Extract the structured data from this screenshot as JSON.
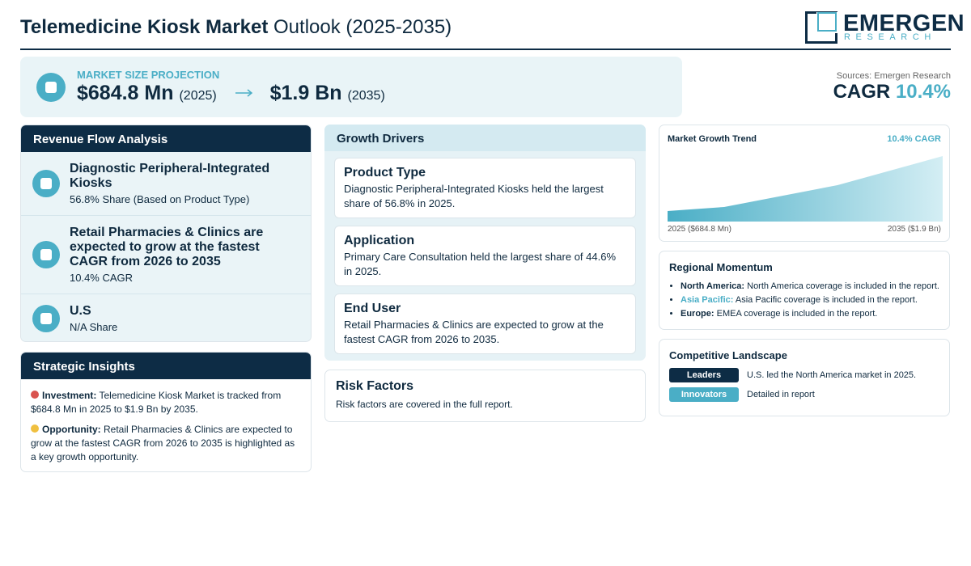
{
  "header": {
    "title_bold": "Telemedicine Kiosk Market",
    "title_rest": "Outlook (2025-2035)",
    "logo_main": "EMERGEN",
    "logo_sub": "RESEARCH"
  },
  "projection": {
    "label": "MARKET SIZE PROJECTION",
    "start_value": "$684.8 Mn",
    "start_year": "(2025)",
    "end_value": "$1.9 Bn",
    "end_year": "(2035)"
  },
  "sources": "Sources: Emergen Research",
  "cagr": {
    "label": "CAGR",
    "value": "10.4%"
  },
  "revenue_flow": {
    "title": "Revenue Flow Analysis",
    "items": [
      {
        "title": "Diagnostic Peripheral-Integrated Kiosks",
        "detail": "56.8% Share (Based on Product Type)"
      },
      {
        "title": "Retail Pharmacies & Clinics are expected to grow at the fastest CAGR from 2026 to 2035",
        "detail": "10.4% CAGR"
      },
      {
        "title": "U.S",
        "detail": "N/A Share"
      }
    ]
  },
  "strategic_insights": {
    "title": "Strategic Insights",
    "items": [
      {
        "label": "Investment:",
        "text": "Telemedicine Kiosk Market is tracked from $684.8 Mn in 2025 to $1.9 Bn by 2035."
      },
      {
        "label": "Opportunity:",
        "text": "Retail Pharmacies & Clinics are expected to grow at the fastest CAGR from 2026 to 2035 is highlighted as a key growth opportunity."
      }
    ]
  },
  "growth_drivers": {
    "title": "Growth Drivers",
    "items": [
      {
        "title": "Product Type",
        "text": "Diagnostic Peripheral-Integrated Kiosks held the largest share of 56.8% in 2025."
      },
      {
        "title": "Application",
        "text": "Primary Care Consultation held the largest share of 44.6% in 2025."
      },
      {
        "title": "End User",
        "text": "Retail Pharmacies & Clinics are expected to grow at the fastest CAGR from 2026 to 2035."
      }
    ]
  },
  "risk_factors": {
    "title": "Risk Factors",
    "text": "Risk factors are covered in the full report."
  },
  "growth_trend": {
    "title": "Market Growth Trend",
    "badge": "10.4% CAGR",
    "start_label": "2025 ($684.8 Mn)",
    "end_label": "2035 ($1.9 Bn)"
  },
  "regional_momentum": {
    "title": "Regional Momentum",
    "items": [
      {
        "region": "North America:",
        "text": "North America coverage is included in the report."
      },
      {
        "region": "Asia Pacific:",
        "text": "Asia Pacific coverage is included in the report."
      },
      {
        "region": "Europe:",
        "text": "EMEA coverage is included in the report."
      }
    ]
  },
  "competitive_landscape": {
    "title": "Competitive Landscape",
    "rows": [
      {
        "tag": "Leaders",
        "text": "U.S. led the North America market in 2025."
      },
      {
        "tag": "Innovators",
        "text": "Detailed in report"
      }
    ]
  }
}
